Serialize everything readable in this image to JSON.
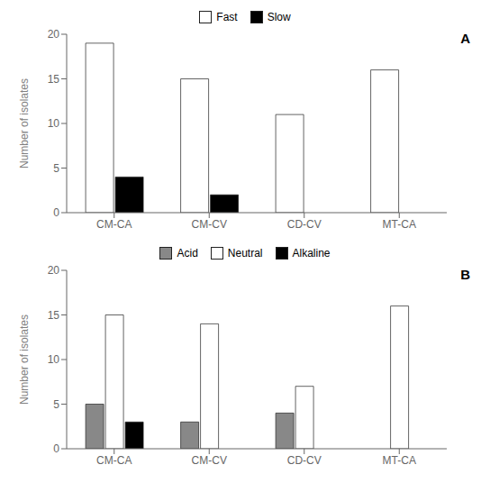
{
  "chart_data": [
    {
      "type": "bar",
      "categories": [
        "CM-CA",
        "CM-CV",
        "CD-CV",
        "MT-CA"
      ],
      "series": [
        {
          "name": "Fast",
          "color": "#ffffff",
          "values": [
            19,
            15,
            11,
            16
          ]
        },
        {
          "name": "Slow",
          "color": "#000000",
          "values": [
            4,
            2,
            0,
            0
          ]
        }
      ],
      "ylabel": "Number of isolates",
      "ylim": [
        0,
        20
      ],
      "yticks": [
        0,
        5,
        10,
        15,
        20
      ],
      "annotations": [
        "A"
      ],
      "legend": "top",
      "grid": false
    },
    {
      "type": "bar",
      "categories": [
        "CM-CA",
        "CM-CV",
        "CD-CV",
        "MT-CA"
      ],
      "series": [
        {
          "name": "Acid",
          "color": "#888888",
          "values": [
            5,
            3,
            4,
            0
          ]
        },
        {
          "name": "Neutral",
          "color": "#ffffff",
          "values": [
            15,
            14,
            7,
            16
          ]
        },
        {
          "name": "Alkaline",
          "color": "#000000",
          "values": [
            3,
            0,
            0,
            0
          ]
        }
      ],
      "ylabel": "Number of isolates",
      "ylim": [
        0,
        20
      ],
      "yticks": [
        0,
        5,
        10,
        15,
        20
      ],
      "annotations": [
        "B"
      ],
      "legend": "top",
      "grid": false
    }
  ]
}
